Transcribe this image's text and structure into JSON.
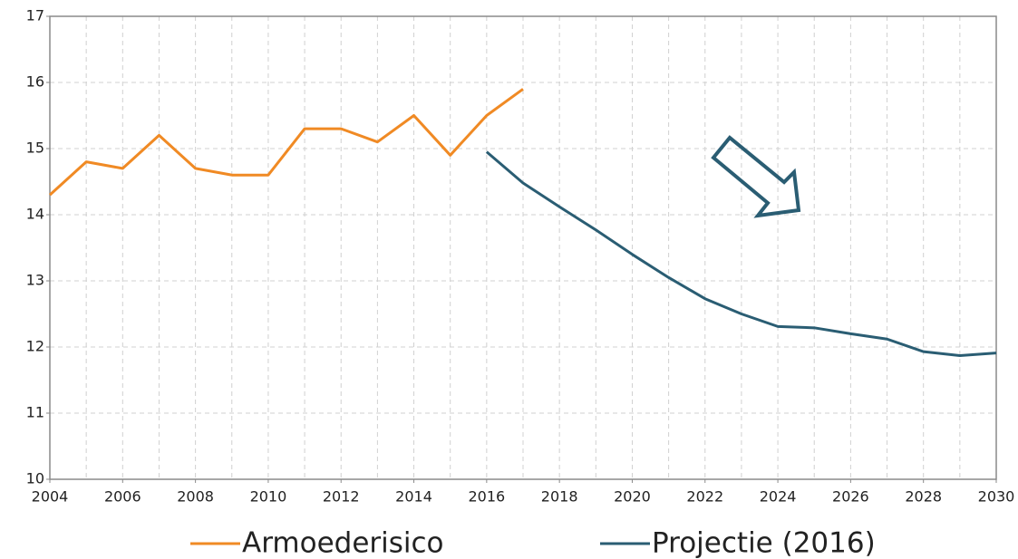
{
  "chart_data": {
    "type": "line",
    "x": [
      2004,
      2005,
      2006,
      2007,
      2008,
      2009,
      2010,
      2011,
      2012,
      2013,
      2014,
      2015,
      2016,
      2017,
      2018,
      2019,
      2020,
      2021,
      2022,
      2023,
      2024,
      2025,
      2026,
      2027,
      2028,
      2029,
      2030
    ],
    "series": [
      {
        "name": "Armoederisico",
        "color": "#f08a24",
        "values": [
          14.3,
          14.8,
          14.7,
          15.2,
          14.7,
          14.6,
          14.6,
          15.3,
          15.3,
          15.1,
          15.5,
          14.9,
          15.5,
          15.9,
          null,
          null,
          null,
          null,
          null,
          null,
          null,
          null,
          null,
          null,
          null,
          null,
          null
        ]
      },
      {
        "name": "Projectie (2016)",
        "color": "#2a5d73",
        "values": [
          null,
          null,
          null,
          null,
          null,
          null,
          null,
          null,
          null,
          null,
          null,
          null,
          14.95,
          14.48,
          14.12,
          13.77,
          13.4,
          13.05,
          12.73,
          12.5,
          12.31,
          12.29,
          12.2,
          12.12,
          11.93,
          11.87,
          11.91
        ]
      }
    ],
    "xlim": [
      2004,
      2030
    ],
    "xticks": [
      2004,
      2006,
      2008,
      2010,
      2012,
      2014,
      2016,
      2018,
      2020,
      2022,
      2024,
      2026,
      2028,
      2030
    ],
    "ylim": [
      10,
      17
    ],
    "yticks": [
      10,
      11,
      12,
      13,
      14,
      15,
      16,
      17
    ],
    "grid": true,
    "legend": "bottom"
  }
}
